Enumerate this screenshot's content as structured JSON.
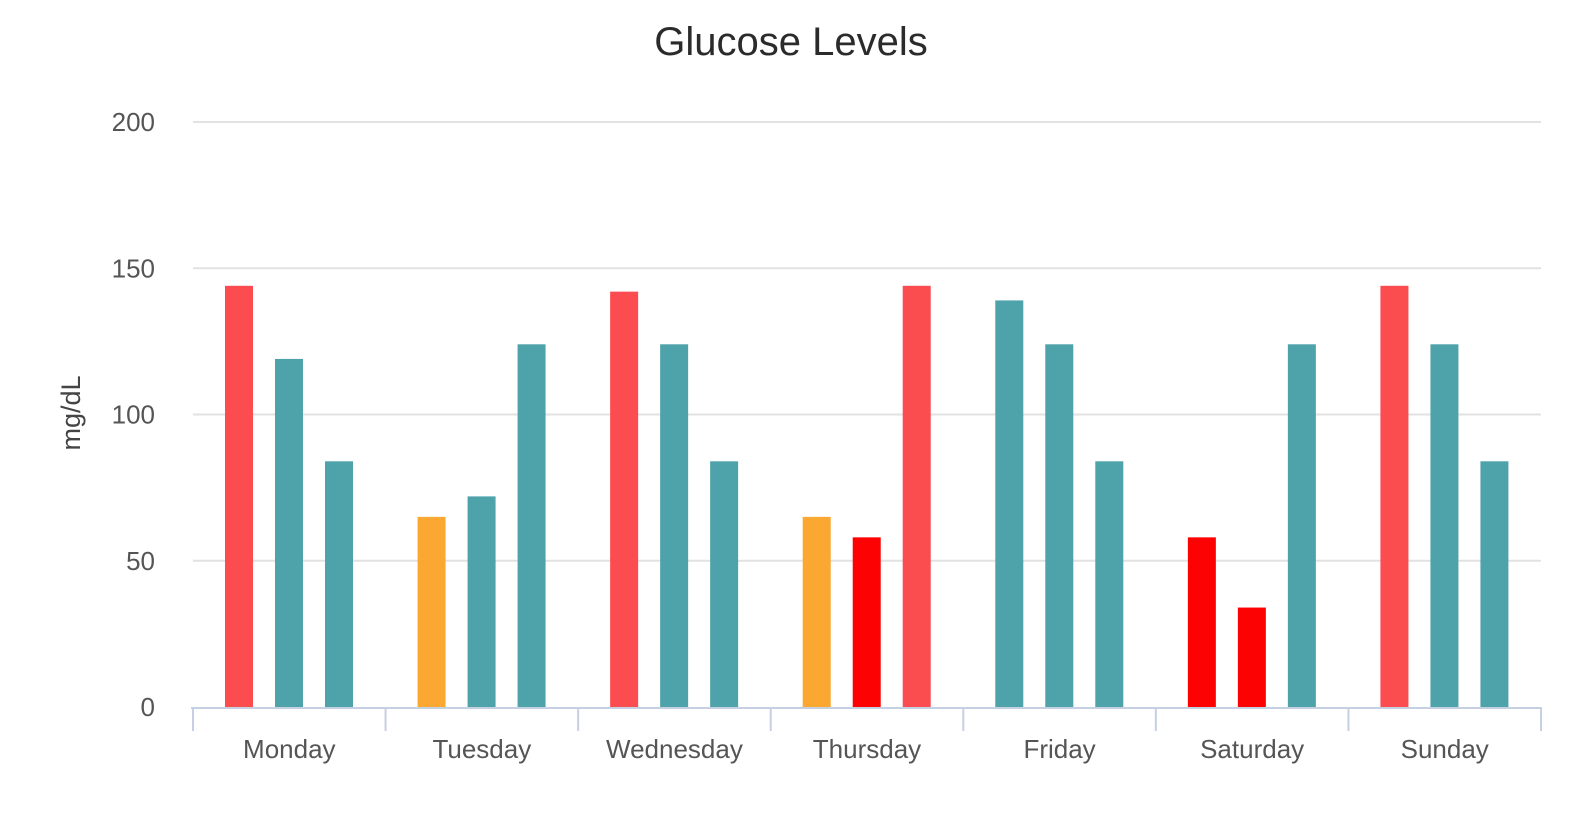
{
  "chart_data": {
    "type": "bar",
    "title": "Glucose Levels",
    "xlabel": "",
    "ylabel": "mg/dL",
    "ylim": [
      0,
      200
    ],
    "yticks": [
      0,
      50,
      100,
      150,
      200
    ],
    "grid": true,
    "legend": "none",
    "categories": [
      "Monday",
      "Tuesday",
      "Wednesday",
      "Thursday",
      "Friday",
      "Saturday",
      "Sunday"
    ],
    "values": [
      [
        144,
        119,
        84
      ],
      [
        65,
        72,
        124
      ],
      [
        142,
        124,
        84
      ],
      [
        65,
        58,
        144
      ],
      [
        139,
        124,
        84
      ],
      [
        58,
        34,
        124
      ],
      [
        144,
        124,
        84
      ]
    ],
    "bar_colors": [
      [
        "#fb4c4f",
        "#4ea2a9",
        "#4ea2a9"
      ],
      [
        "#fba832",
        "#4ea2a9",
        "#4ea2a9"
      ],
      [
        "#fb4c4f",
        "#4ea2a9",
        "#4ea2a9"
      ],
      [
        "#fba832",
        "#fc0203",
        "#fb4c4f"
      ],
      [
        "#4ea2a9",
        "#4ea2a9",
        "#4ea2a9"
      ],
      [
        "#fc0203",
        "#fc0203",
        "#4ea2a9"
      ],
      [
        "#fb4c4f",
        "#4ea2a9",
        "#4ea2a9"
      ]
    ],
    "colors": {
      "high": "#fb4c4f",
      "normal": "#4ea2a9",
      "low": "#fba832",
      "very_low": "#fc0203",
      "grid": "#e2e2e2",
      "axis": "#c5d1e2"
    }
  }
}
